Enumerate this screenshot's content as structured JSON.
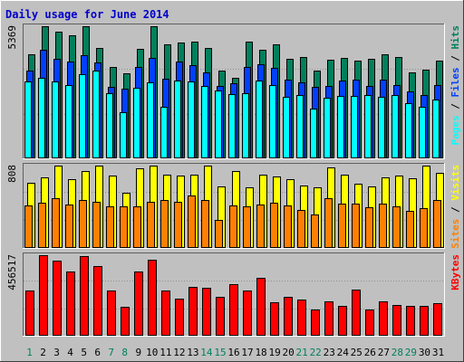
{
  "chart_data": {
    "type": "bar",
    "title": "Daily usage for June 2014",
    "categories": [
      "1",
      "2",
      "3",
      "4",
      "5",
      "6",
      "7",
      "8",
      "9",
      "10",
      "11",
      "12",
      "13",
      "14",
      "15",
      "16",
      "17",
      "18",
      "19",
      "20",
      "21",
      "22",
      "23",
      "24",
      "25",
      "26",
      "27",
      "28",
      "29",
      "30",
      "31"
    ],
    "weekend_days": [
      "1",
      "7",
      "8",
      "14",
      "15",
      "21",
      "22",
      "28",
      "29"
    ],
    "colors": {
      "title": "#0000cc",
      "background": "#c0c0c0",
      "grid": "#909090",
      "hits": "#00805c",
      "files": "#0040ff",
      "pages": "#00ffff",
      "visits": "#ffff00",
      "sites": "#ff8000",
      "kbytes": "#ff0000",
      "weekday_label": "#000000",
      "weekend_label": "#00805c"
    },
    "panels": [
      {
        "id": "hits-files-pages",
        "ymax_label": "5369",
        "ylim": [
          0,
          5369
        ],
        "legend": [
          {
            "text": "Pages",
            "color": "#00ffff"
          },
          {
            "text": " / ",
            "color": "#000000"
          },
          {
            "text": "Files",
            "color": "#0040ff"
          },
          {
            "text": " / ",
            "color": "#000000"
          },
          {
            "text": "Hits",
            "color": "#00805c"
          }
        ],
        "series": [
          {
            "name": "Hits",
            "color": "#00805c",
            "values": [
              4218,
              5369,
              5140,
              5005,
              5369,
              4480,
              3720,
              3450,
              4450,
              5369,
              4645,
              4725,
              4750,
              4470,
              3580,
              3260,
              4750,
              4420,
              4620,
              4060,
              4105,
              3555,
              4005,
              4080,
              3983,
              4060,
              4220,
              4130,
              3510,
              3587,
              3965
            ]
          },
          {
            "name": "Files",
            "color": "#0040ff",
            "values": [
              3560,
              4430,
              4030,
              3930,
              4200,
              3900,
              2920,
              2820,
              3720,
              4090,
              3240,
              3950,
              3780,
              3480,
              2930,
              3040,
              3710,
              3810,
              3660,
              3200,
              3105,
              2920,
              2950,
              3150,
              3184,
              2950,
              3215,
              2980,
              2710,
              2560,
              2997
            ]
          },
          {
            "name": "Pages",
            "color": "#00ffff",
            "values": [
              3130,
              3270,
              3110,
              2970,
              3410,
              3550,
              2660,
              1880,
              2850,
              3090,
              2090,
              3150,
              3130,
              2950,
              2770,
              2620,
              2660,
              3170,
              2990,
              2500,
              2580,
              2040,
              2460,
              2520,
              2540,
              2580,
              2490,
              2570,
              2230,
              2090,
              2395
            ]
          }
        ]
      },
      {
        "id": "visits-sites",
        "ymax_label": "808",
        "ylim": [
          0,
          808
        ],
        "legend": [
          {
            "text": "Sites",
            "color": "#ff8000"
          },
          {
            "text": " / ",
            "color": "#000000"
          },
          {
            "text": "Visits",
            "color": "#ffff00"
          }
        ],
        "series": [
          {
            "name": "Visits",
            "color": "#ffff00",
            "values": [
              642,
              694,
              808,
              676,
              756,
              808,
              710,
              545,
              778,
              808,
              720,
              710,
              718,
              808,
              600,
              756,
              595,
              720,
              698,
              672,
              613,
              592,
              790,
              720,
              630,
              608,
              694,
              710,
              686,
              808,
              740
            ]
          },
          {
            "name": "Sites",
            "color": "#ff8000",
            "values": [
              416,
              442,
              490,
              426,
              470,
              454,
              408,
              408,
              408,
              454,
              470,
              454,
              514,
              472,
              278,
              416,
              408,
              426,
              446,
              416,
              376,
              330,
              486,
              432,
              432,
              402,
              432,
              408,
              364,
              390,
              470
            ]
          }
        ]
      },
      {
        "id": "kbytes",
        "ymax_label": "456517",
        "ylim": [
          0,
          456517
        ],
        "legend": [
          {
            "text": "KBytes",
            "color": "#ff0000"
          }
        ],
        "series": [
          {
            "name": "KBytes",
            "color": "#ff0000",
            "values": [
              258000,
              456517,
              428000,
              364000,
              450000,
              393000,
              258000,
              166000,
              366000,
              430000,
              257000,
              211000,
              276000,
              270000,
              220000,
              292000,
              257000,
              330000,
              192000,
              222000,
              205000,
              151000,
              195000,
              170000,
              262000,
              147000,
              196000,
              174000,
              171000,
              167000,
              183000
            ]
          }
        ]
      }
    ]
  }
}
